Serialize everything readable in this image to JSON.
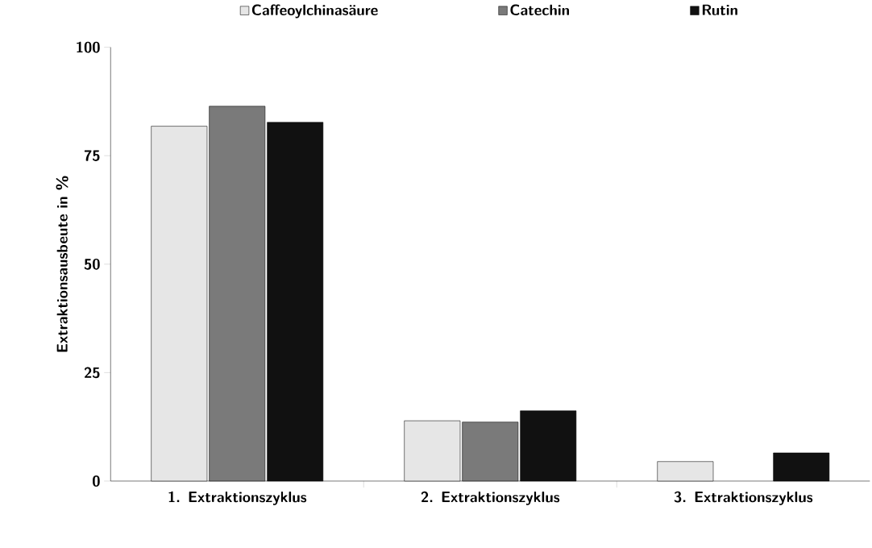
{
  "chart_data": {
    "type": "bar",
    "ylabel": "Extraktionsausbeute in %",
    "categories": [
      "1. Extraktionszyklus",
      "2. Extraktionszyklus",
      "3. Extraktionszyklus"
    ],
    "series": [
      {
        "name": "Caffeoylchinasäure",
        "color": "#e6e6e6",
        "values": [
          81.8,
          13.9,
          4.5
        ]
      },
      {
        "name": "Catechin",
        "color": "#7a7a7a",
        "values": [
          86.4,
          13.6,
          null
        ]
      },
      {
        "name": "Rutin",
        "color": "#111111",
        "values": [
          82.7,
          16.2,
          6.5
        ]
      }
    ],
    "ylim": [
      0,
      100
    ],
    "yticks": [
      0,
      25,
      50,
      75,
      100
    ],
    "grid": false,
    "legend": "top"
  }
}
